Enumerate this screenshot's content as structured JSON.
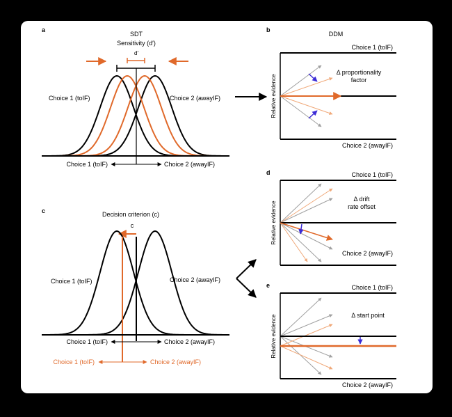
{
  "panel_a": {
    "letter": "a",
    "title": "SDT",
    "subtitle": "Sensitivity (d′)",
    "d_symbol": "d′",
    "left_label": "Choice 1 (toIF)",
    "right_label": "Choice 2 (awayIF)",
    "axis_left": "Choice 1 (toIF)",
    "axis_right": "Choice 2 (awayIF)"
  },
  "panel_b": {
    "letter": "b",
    "title": "DDM",
    "top_label": "Choice 1 (toIF)",
    "bottom_label": "Choice 2 (awayIF)",
    "annotation_line1": "Δ proportionality",
    "annotation_line2": "factor",
    "y_label": "Relative evidence"
  },
  "panel_c": {
    "letter": "c",
    "title": "Decision criterion (c)",
    "c_symbol": "c",
    "left_label": "Choice 1 (toIF)",
    "right_label": "Choice 2 (awayIF)",
    "axis_left": "Choice 1 (toIF)",
    "axis_right": "Choice 2 (awayIF)",
    "orange_axis_left": "Choice 1 (toIF)",
    "orange_axis_right": "Choice 2 (awayIF)"
  },
  "panel_d": {
    "letter": "d",
    "top_label": "Choice 1 (toIF)",
    "bottom_label": "Choice 2 (awayIF)",
    "annotation_line1": "Δ drift",
    "annotation_line2": "rate offset",
    "y_label": "Relative evidence"
  },
  "panel_e": {
    "letter": "e",
    "top_label": "Choice 1 (toIF)",
    "bottom_label": "Choice 2 (awayIF)",
    "annotation_line1": "Δ start point",
    "y_label": "Relative evidence"
  },
  "colors": {
    "black": "#000000",
    "orange": "#e0692a",
    "light_orange": "#f0a878",
    "gray": "#a0a0a0",
    "blue": "#3b2bd6"
  }
}
